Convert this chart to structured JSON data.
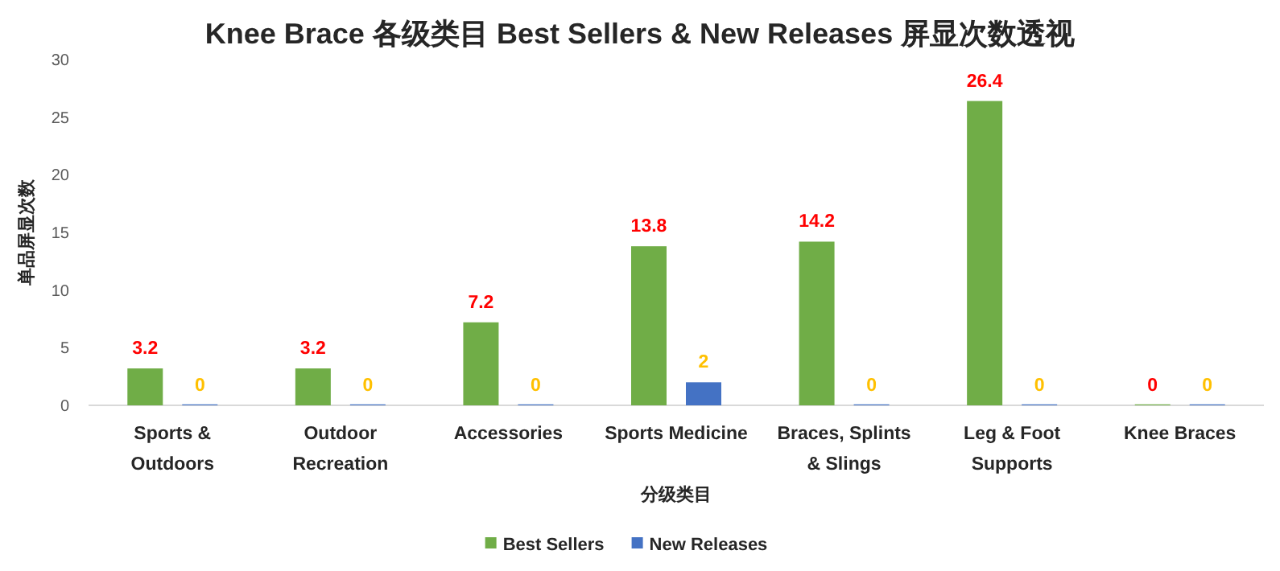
{
  "chart_data": {
    "type": "bar",
    "title": "Knee Brace 各级类目 Best Sellers & New Releases 屏显次数透视",
    "xlabel": "分级类目",
    "ylabel": "单品屏显次数",
    "categories": [
      "Sports & Outdoors",
      "Outdoor Recreation",
      "Accessories",
      "Sports Medicine",
      "Braces, Splints & Slings",
      "Leg & Foot Supports",
      "Knee Braces"
    ],
    "series": [
      {
        "name": "Best Sellers",
        "color": "#70ad47",
        "values": [
          3.2,
          3.2,
          7.2,
          13.8,
          14.2,
          26.4,
          0
        ]
      },
      {
        "name": "New Releases",
        "color": "#4472c4",
        "values": [
          0,
          0,
          0,
          2,
          0,
          0,
          0
        ]
      }
    ],
    "ylim": [
      0,
      30
    ],
    "yticks": [
      0,
      5,
      10,
      15,
      20,
      25,
      30
    ],
    "data_labels": true,
    "legend": "bottom",
    "grid": false
  }
}
